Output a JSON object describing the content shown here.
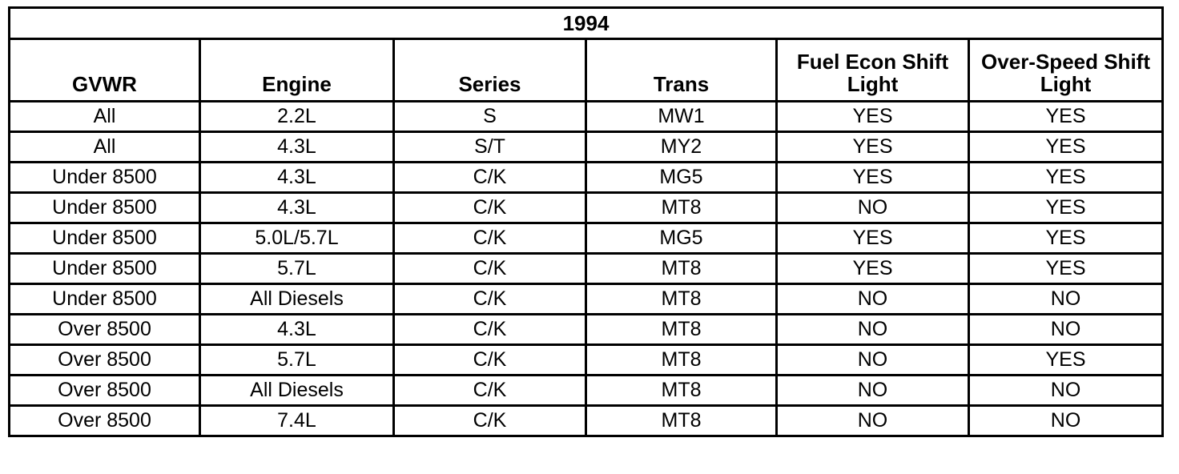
{
  "table": {
    "title": "1994",
    "columns": [
      "GVWR",
      "Engine",
      "Series",
      "Trans",
      "Fuel Econ Shift Light",
      "Over-Speed Shift Light"
    ],
    "rows": [
      [
        "All",
        "2.2L",
        "S",
        "MW1",
        "YES",
        "YES"
      ],
      [
        "All",
        "4.3L",
        "S/T",
        "MY2",
        "YES",
        "YES"
      ],
      [
        "Under 8500",
        "4.3L",
        "C/K",
        "MG5",
        "YES",
        "YES"
      ],
      [
        "Under 8500",
        "4.3L",
        "C/K",
        "MT8",
        "NO",
        "YES"
      ],
      [
        "Under 8500",
        "5.0L/5.7L",
        "C/K",
        "MG5",
        "YES",
        "YES"
      ],
      [
        "Under 8500",
        "5.7L",
        "C/K",
        "MT8",
        "YES",
        "YES"
      ],
      [
        "Under 8500",
        "All Diesels",
        "C/K",
        "MT8",
        "NO",
        "NO"
      ],
      [
        "Over 8500",
        "4.3L",
        "C/K",
        "MT8",
        "NO",
        "NO"
      ],
      [
        "Over 8500",
        "5.7L",
        "C/K",
        "MT8",
        "NO",
        "YES"
      ],
      [
        "Over 8500",
        "All Diesels",
        "C/K",
        "MT8",
        "NO",
        "NO"
      ],
      [
        "Over 8500",
        "7.4L",
        "C/K",
        "MT8",
        "NO",
        "NO"
      ]
    ]
  }
}
